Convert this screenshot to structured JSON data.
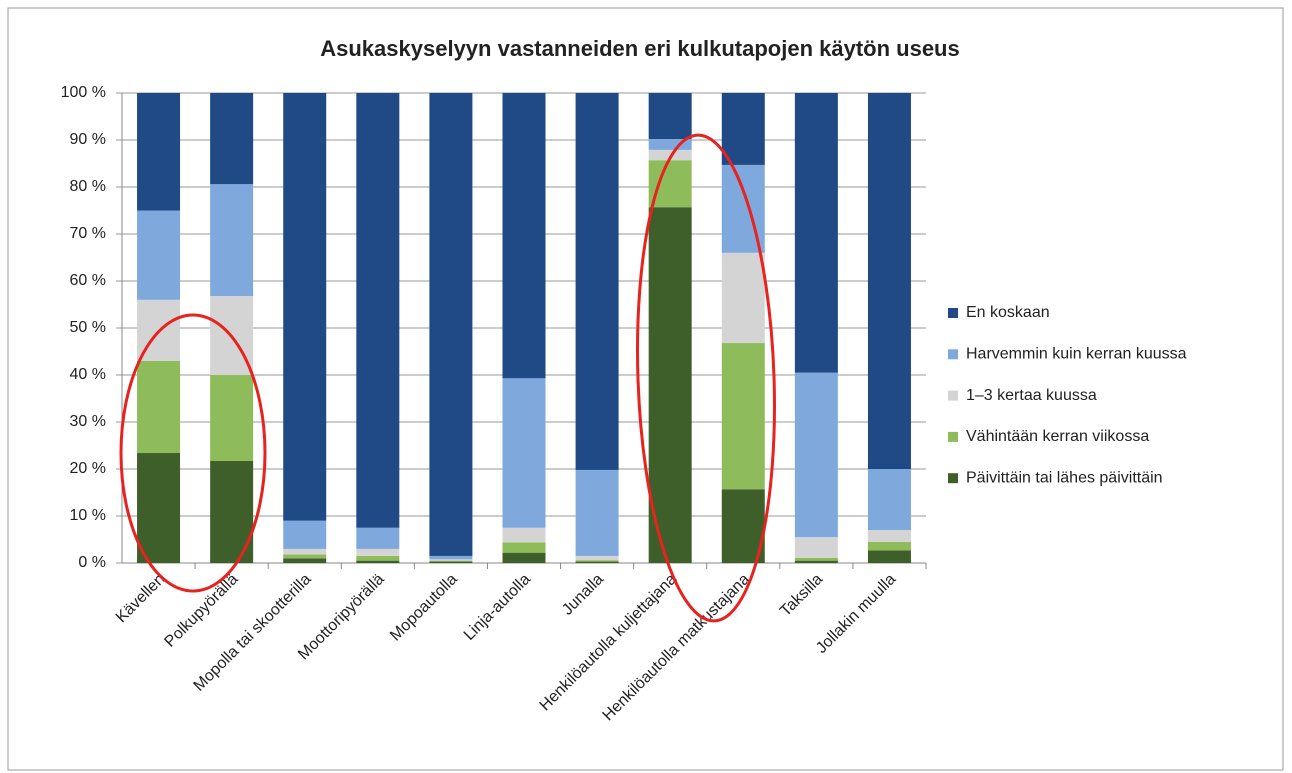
{
  "chart_data": {
    "type": "stacked_bar",
    "title": "Asukaskyselyyn vastanneiden eri kulkutapojen käytön useus",
    "categories": [
      "Kävellen",
      "Polkupyörällä",
      "Mopolla tai skootterilla",
      "Moottoripyörällä",
      "Mopoautolla",
      "Linja-autolla",
      "Junalla",
      "Henkilöautolla kuljettajana",
      "Henkilöautolla matkustajana",
      "Taksilla",
      "Jollakin muulla"
    ],
    "series": [
      {
        "name": "Päivittäin tai lähes päivittäin",
        "color": "#3f5f2a",
        "values": [
          23.4,
          21.7,
          1,
          0.5,
          0.3,
          2.2,
          0.3,
          75.7,
          15.7,
          0.5,
          2.7
        ]
      },
      {
        "name": "Vähintään kerran viikossa",
        "color": "#8fbc5a",
        "values": [
          19.6,
          18.3,
          0.8,
          1,
          0.2,
          2.2,
          0.3,
          10,
          31.1,
          0.6,
          1.8
        ]
      },
      {
        "name": "1–3 kertaa kuussa",
        "color": "#d4d4d4",
        "values": [
          13,
          16.8,
          1.2,
          1.5,
          0.3,
          3.1,
          0.9,
          2.2,
          19.2,
          4.4,
          2.5
        ]
      },
      {
        "name": "Harvemmin kuin kerran kuussa",
        "color": "#7fa9dc",
        "values": [
          19,
          23.8,
          6,
          4.5,
          0.7,
          31.8,
          18.3,
          2.3,
          18.7,
          35,
          13
        ]
      },
      {
        "name": "En koskaan",
        "color": "#1f4a86",
        "values": [
          25,
          19.4,
          91,
          92.5,
          98.5,
          60.7,
          80.2,
          9.8,
          15.3,
          59.5,
          80
        ]
      }
    ],
    "ylim": [
      0,
      100
    ],
    "yticks": [
      {
        "value": 0,
        "label": "0 %"
      },
      {
        "value": 10,
        "label": "10 %"
      },
      {
        "value": 20,
        "label": "20 %"
      },
      {
        "value": 30,
        "label": "30 %"
      },
      {
        "value": 40,
        "label": "40 %"
      },
      {
        "value": 50,
        "label": "50 %"
      },
      {
        "value": 60,
        "label": "60 %"
      },
      {
        "value": 70,
        "label": "70 %"
      },
      {
        "value": 80,
        "label": "80 %"
      },
      {
        "value": 90,
        "label": "90 %"
      },
      {
        "value": 100,
        "label": "100 %"
      }
    ],
    "grid": true,
    "legend": "right"
  }
}
